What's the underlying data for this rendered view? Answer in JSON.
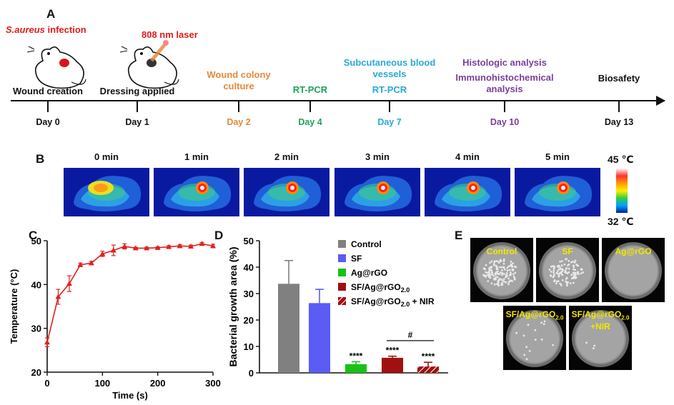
{
  "panel_a": {
    "letter": "A",
    "infection_label_italic": "S.aureus",
    "infection_label_rest": " infection",
    "laser_label": "808 nm laser",
    "events": [
      {
        "label": "Wound creation",
        "day": "Day 0",
        "color": "#111111"
      },
      {
        "label": "Dressing applied",
        "day": "Day 1",
        "color": "#111111"
      },
      {
        "label": "Wound colony\nculture",
        "day": "Day 2",
        "color": "#e5883a"
      },
      {
        "label": "RT-PCR",
        "day": "Day 4",
        "color": "#1fa35a"
      },
      {
        "label": "Subcutaneous blood\nvessels",
        "label2": "RT-PCR",
        "day": "Day 7",
        "color": "#29a9d6"
      },
      {
        "label": "Histologic analysis",
        "label2": "Immunohistochemical\nanalysis",
        "day": "Day 10",
        "color": "#7a3f9b"
      },
      {
        "label": "Biosafety",
        "day": "Day 13",
        "color": "#111111"
      }
    ]
  },
  "panel_b": {
    "letter": "B",
    "times": [
      "0 min",
      "1 min",
      "2 min",
      "3 min",
      "4 min",
      "5 min"
    ],
    "scale_max": "45 ℃",
    "scale_min": "32 ℃"
  },
  "panel_c": {
    "letter": "C",
    "chart_data": {
      "type": "line",
      "x": [
        0,
        20,
        40,
        60,
        80,
        100,
        120,
        140,
        160,
        180,
        200,
        220,
        240,
        260,
        280,
        300
      ],
      "y": [
        26.8,
        37.2,
        40.2,
        44.5,
        44.9,
        47.0,
        47.8,
        48.7,
        48.3,
        48.3,
        48.4,
        48.6,
        48.8,
        48.7,
        49.3,
        48.8
      ],
      "err": [
        1.0,
        1.7,
        1.8,
        0.4,
        0.4,
        0.6,
        1.2,
        0.6,
        0.2,
        0.2,
        0.2,
        0.3,
        0.3,
        0.3,
        0.3,
        0.4
      ],
      "xlabel": "Time (s)",
      "ylabel": "Temperature (°C)",
      "xlim": [
        0,
        300
      ],
      "ylim": [
        20,
        50
      ],
      "xticks": [
        "0",
        "100",
        "200",
        "300"
      ],
      "yticks": [
        "20",
        "30",
        "40",
        "50"
      ],
      "color": "#e02020"
    }
  },
  "panel_d": {
    "letter": "D",
    "chart_data": {
      "type": "bar",
      "categories": [
        "Control",
        "SF",
        "Ag@rGO",
        "SF/Ag@rGO2.0",
        "SF/Ag@rGO2.0 + NIR"
      ],
      "values": [
        33.7,
        26.4,
        3.3,
        5.7,
        2.4
      ],
      "errors": [
        8.8,
        5.2,
        0.9,
        0.6,
        1.6
      ],
      "colors": [
        "#808080",
        "#5b5bf5",
        "#16c216",
        "#a01010",
        "#a01010"
      ],
      "significance": [
        "",
        "",
        "****",
        "****",
        "****"
      ],
      "bracket_label": "#",
      "ylabel": "Bacterial growth area (%)",
      "ylim": [
        0,
        50
      ],
      "yticks": [
        "0",
        "10",
        "20",
        "30",
        "40",
        "50"
      ],
      "legend": [
        "Control",
        "SF",
        "Ag@rGO",
        "SF/Ag@rGO",
        "SF/Ag@rGO"
      ],
      "legend_sub": [
        "",
        "",
        "",
        "2.0",
        "2.0"
      ],
      "legend_suffix": [
        "",
        "",
        "",
        "",
        " + NIR"
      ]
    }
  },
  "panel_e": {
    "letter": "E",
    "plates": [
      {
        "label": "Control",
        "colonies": 140
      },
      {
        "label": "SF",
        "colonies": 110
      },
      {
        "label": "Ag@rGO",
        "colonies": 0
      },
      {
        "label": "SF/Ag@rGO",
        "sub": "2.0",
        "colonies": 14
      },
      {
        "label": "SF/Ag@rGO",
        "sub": "2.0",
        "suffix": "+NIR",
        "colonies": 3
      }
    ]
  }
}
